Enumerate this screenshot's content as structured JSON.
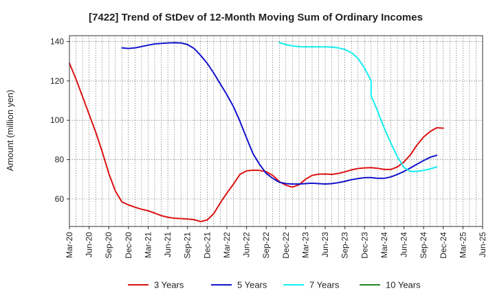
{
  "chart_data": {
    "type": "line",
    "title": "[7422]  Trend of StDev of 12-Month Moving Sum of Ordinary Incomes",
    "xlabel": "",
    "ylabel": "Amount (million yen)",
    "ylim": [
      46,
      143
    ],
    "yticks": [
      60,
      80,
      100,
      120,
      140
    ],
    "x_range": [
      "2020-03",
      "2025-06"
    ],
    "xticks": [
      "Mar-20",
      "Jun-20",
      "Sep-20",
      "Dec-20",
      "Mar-21",
      "Jun-21",
      "Sep-21",
      "Dec-21",
      "Mar-22",
      "Jun-22",
      "Sep-22",
      "Dec-22",
      "Mar-23",
      "Jun-23",
      "Sep-23",
      "Dec-23",
      "Mar-24",
      "Jun-24",
      "Sep-24",
      "Dec-24",
      "Mar-25",
      "Jun-25"
    ],
    "grid": true,
    "legend_position": "bottom",
    "series": [
      {
        "name": "3 Years",
        "color": "#dd1111",
        "points": [
          [
            "2020-03",
            129
          ],
          [
            "2020-04",
            121
          ],
          [
            "2020-05",
            112
          ],
          [
            "2020-06",
            103
          ],
          [
            "2020-07",
            94
          ],
          [
            "2020-08",
            84
          ],
          [
            "2020-09",
            73
          ],
          [
            "2020-10",
            64
          ],
          [
            "2020-11",
            58.5
          ],
          [
            "2020-12",
            57
          ],
          [
            "2021-01",
            55.8
          ],
          [
            "2021-02",
            54.8
          ],
          [
            "2021-03",
            54
          ],
          [
            "2021-04",
            52.8
          ],
          [
            "2021-05",
            51.5
          ],
          [
            "2021-06",
            50.7
          ],
          [
            "2021-07",
            50.2
          ],
          [
            "2021-08",
            50
          ],
          [
            "2021-09",
            49.8
          ],
          [
            "2021-10",
            49.5
          ],
          [
            "2021-11",
            48.5
          ],
          [
            "2021-12",
            49.3
          ],
          [
            "2022-01",
            52.5
          ],
          [
            "2022-02",
            58
          ],
          [
            "2022-03",
            63
          ],
          [
            "2022-04",
            67.5
          ],
          [
            "2022-05",
            72.5
          ],
          [
            "2022-06",
            74.3
          ],
          [
            "2022-07",
            74.6
          ],
          [
            "2022-08",
            74.5
          ],
          [
            "2022-09",
            73.8
          ],
          [
            "2022-10",
            72
          ],
          [
            "2022-11",
            68.8
          ],
          [
            "2022-12",
            67
          ],
          [
            "2023-01",
            66
          ],
          [
            "2023-02",
            67.2
          ],
          [
            "2023-03",
            70
          ],
          [
            "2023-04",
            72
          ],
          [
            "2023-05",
            72.6
          ],
          [
            "2023-06",
            72.7
          ],
          [
            "2023-07",
            72.5
          ],
          [
            "2023-08",
            73
          ],
          [
            "2023-09",
            73.8
          ],
          [
            "2023-10",
            74.8
          ],
          [
            "2023-11",
            75.5
          ],
          [
            "2023-12",
            75.8
          ],
          [
            "2023-13",
            75.9
          ],
          [
            "2024-01",
            75.9
          ],
          [
            "2024-02",
            75.6
          ],
          [
            "2024-03",
            75
          ],
          [
            "2024-04",
            75
          ],
          [
            "2024-05",
            76.3
          ],
          [
            "2024-06",
            78.8
          ],
          [
            "2024-07",
            82.5
          ],
          [
            "2024-08",
            87.5
          ],
          [
            "2024-09",
            91.5
          ],
          [
            "2024-10",
            94.3
          ],
          [
            "2024-11",
            96.2
          ],
          [
            "2024-12",
            96
          ]
        ]
      },
      {
        "name": "5 Years",
        "color": "#1111cc",
        "points": [
          [
            "2020-11",
            136.8
          ],
          [
            "2020-12",
            136.5
          ],
          [
            "2021-01",
            136.8
          ],
          [
            "2021-02",
            137.5
          ],
          [
            "2021-03",
            138.2
          ],
          [
            "2021-04",
            138.8
          ],
          [
            "2021-05",
            139.1
          ],
          [
            "2021-06",
            139.3
          ],
          [
            "2021-07",
            139.4
          ],
          [
            "2021-08",
            139.3
          ],
          [
            "2021-09",
            138.5
          ],
          [
            "2021-10",
            136.5
          ],
          [
            "2021-11",
            133
          ],
          [
            "2021-12",
            129
          ],
          [
            "2022-01",
            124
          ],
          [
            "2022-02",
            118.5
          ],
          [
            "2022-03",
            113
          ],
          [
            "2022-04",
            107
          ],
          [
            "2022-05",
            99.5
          ],
          [
            "2022-06",
            91
          ],
          [
            "2022-07",
            83
          ],
          [
            "2022-08",
            77.5
          ],
          [
            "2022-09",
            73
          ],
          [
            "2022-10",
            70.5
          ],
          [
            "2022-11",
            68.5
          ],
          [
            "2022-12",
            67.8
          ],
          [
            "2023-01",
            67.6
          ],
          [
            "2023-02",
            67.6
          ],
          [
            "2023-03",
            67.8
          ],
          [
            "2023-04",
            68
          ],
          [
            "2023-05",
            67.8
          ],
          [
            "2023-06",
            67.6
          ],
          [
            "2023-07",
            67.8
          ],
          [
            "2023-08",
            68.3
          ],
          [
            "2023-09",
            69
          ],
          [
            "2023-10",
            69.8
          ],
          [
            "2023-11",
            70.4
          ],
          [
            "2023-12",
            70.8
          ],
          [
            "2023-13",
            70.9
          ],
          [
            "2024-01",
            70.8
          ],
          [
            "2024-02",
            70.5
          ],
          [
            "2024-03",
            70.5
          ],
          [
            "2024-04",
            71.2
          ],
          [
            "2024-05",
            72.5
          ],
          [
            "2024-06",
            74
          ],
          [
            "2024-07",
            75.8
          ],
          [
            "2024-08",
            77.7
          ],
          [
            "2024-09",
            79.5
          ],
          [
            "2024-10",
            81.2
          ],
          [
            "2024-11",
            82.2
          ]
        ]
      },
      {
        "name": "7 Years",
        "color": "#11eeee",
        "points": [
          [
            "2022-11",
            139.5
          ],
          [
            "2022-12",
            138.5
          ],
          [
            "2023-01",
            137.8
          ],
          [
            "2023-02",
            137.4
          ],
          [
            "2023-03",
            137.3
          ],
          [
            "2023-04",
            137.3
          ],
          [
            "2023-05",
            137.3
          ],
          [
            "2023-06",
            137.3
          ],
          [
            "2023-07",
            137.2
          ],
          [
            "2023-08",
            136.8
          ],
          [
            "2023-09",
            136
          ],
          [
            "2023-10",
            134.3
          ],
          [
            "2023-11",
            131.5
          ],
          [
            "2023-12",
            126.5
          ],
          [
            "2023-13",
            120
          ],
          [
            "2024-01",
            112.5
          ],
          [
            "2024-02",
            104.5
          ],
          [
            "2024-03",
            96
          ],
          [
            "2024-04",
            88.5
          ],
          [
            "2024-05",
            81.5
          ],
          [
            "2024-06",
            76
          ],
          [
            "2024-07",
            74
          ],
          [
            "2024-08",
            74
          ],
          [
            "2024-09",
            74.5
          ],
          [
            "2024-10",
            75.3
          ],
          [
            "2024-11",
            76.3
          ]
        ]
      },
      {
        "name": "10 Years",
        "color": "#228822",
        "points": []
      }
    ]
  }
}
